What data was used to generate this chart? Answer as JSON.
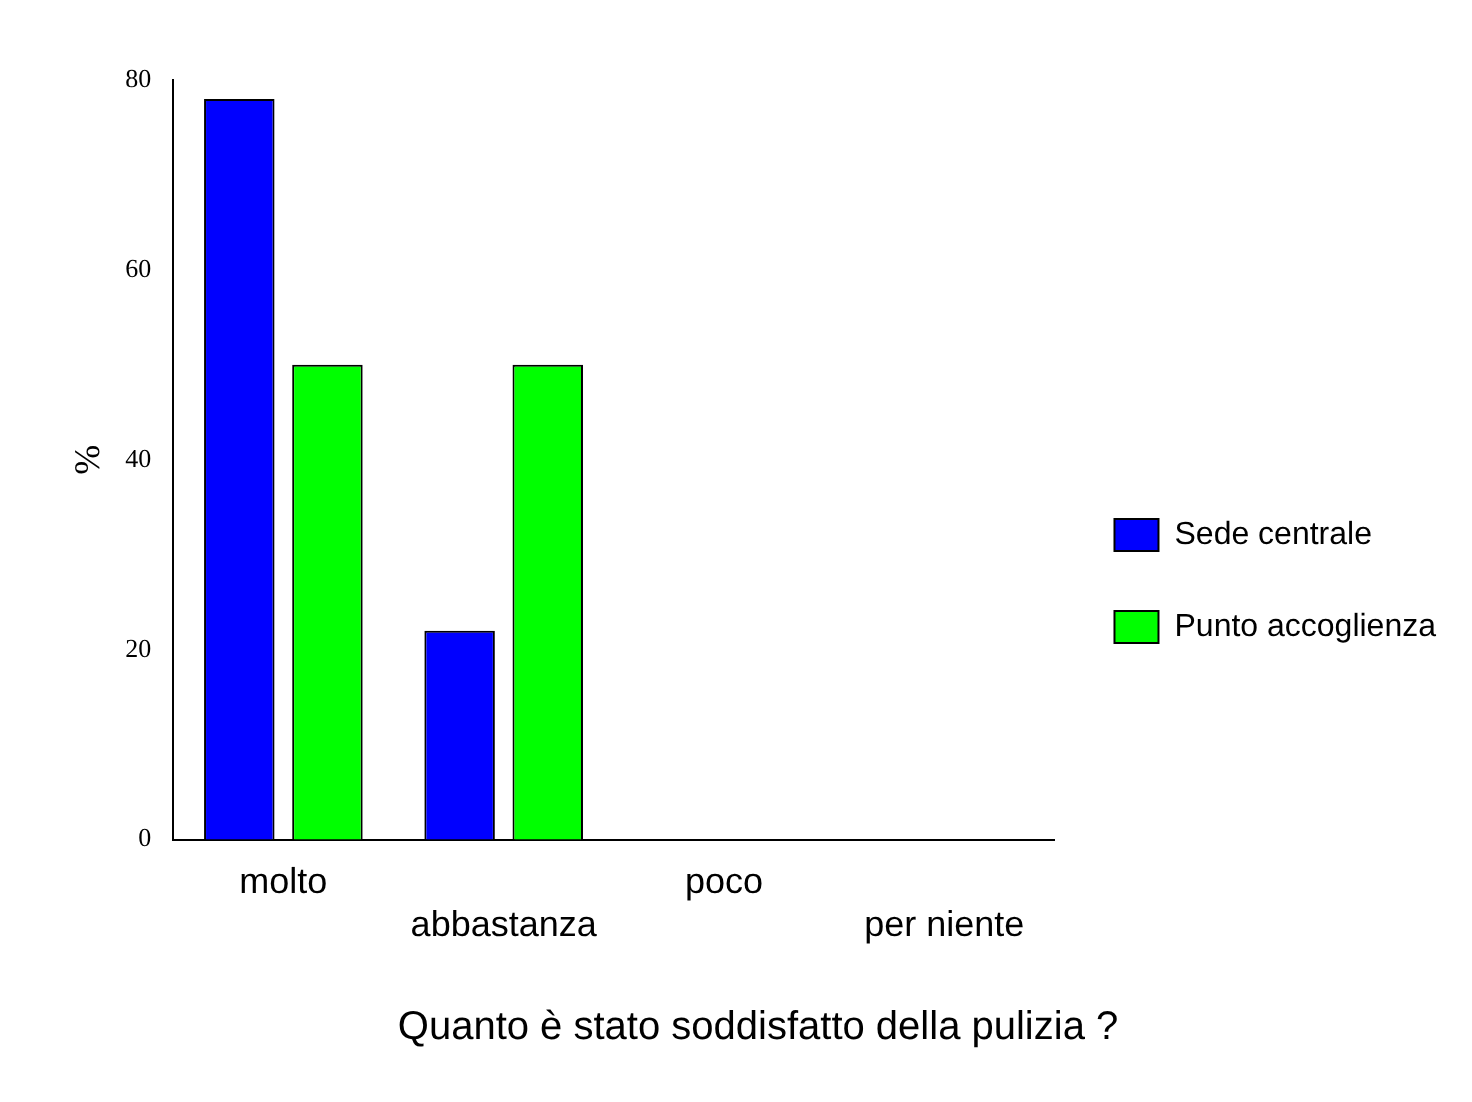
{
  "chart_data": {
    "type": "bar",
    "title": "Quanto è stato soddisfatto della pulizia ?",
    "ylabel": "%",
    "categories": [
      "molto",
      "abbastanza",
      "poco",
      "per niente"
    ],
    "series": [
      {
        "name": "Sede centrale",
        "color": "#0000ff",
        "values": [
          78,
          22,
          0,
          0
        ]
      },
      {
        "name": "Punto accoglienza",
        "color": "#00ff00",
        "values": [
          50,
          50,
          0,
          0
        ]
      }
    ],
    "ylim": [
      0,
      80
    ],
    "yticks": [
      0,
      20,
      40,
      60,
      80
    ],
    "grid": false,
    "legend": "right"
  }
}
